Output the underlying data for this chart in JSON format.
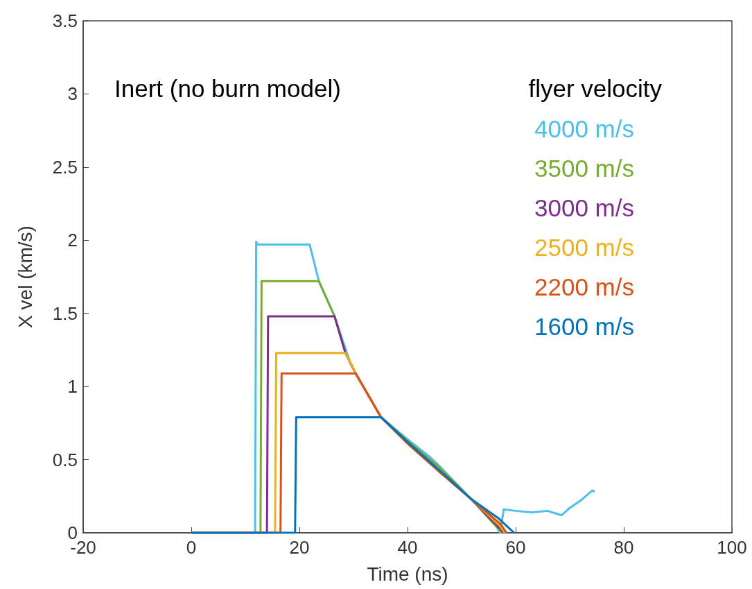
{
  "chart_data": {
    "type": "line",
    "xlabel": "Time (ns)",
    "ylabel": "X vel (km/s)",
    "legend_title": "flyer velocity",
    "annotations": [
      "Inert (no burn model)"
    ],
    "xlim": [
      -20,
      100
    ],
    "xticks": [
      -20,
      0,
      20,
      40,
      60,
      80,
      100
    ],
    "ylim": [
      0,
      3.5
    ],
    "yticks": [
      0,
      0.5,
      1,
      1.5,
      2,
      2.5,
      3,
      3.5
    ],
    "grid": false,
    "legend": "top right",
    "marker": "none",
    "line_style": "solid",
    "series": [
      {
        "name": "4000 m/s",
        "color": "#4dbeee",
        "x": [
          0,
          11.8,
          12.0,
          12.3,
          21.9,
          23.6,
          26.5,
          29.5,
          35.1,
          40.3,
          44.1,
          45.8,
          51.8,
          56.5,
          57.1,
          57.8,
          60,
          63,
          65.9,
          68.5,
          70,
          72,
          74.2,
          74.6
        ],
        "values": [
          0,
          0,
          1.99,
          1.97,
          1.97,
          1.72,
          1.48,
          1.15,
          0.79,
          0.63,
          0.52,
          0.46,
          0.23,
          0.04,
          0,
          0.16,
          0.15,
          0.14,
          0.15,
          0.12,
          0.17,
          0.22,
          0.29,
          0.28
        ]
      },
      {
        "name": "3500 m/s",
        "color": "#77ac30",
        "x": [
          0,
          12.8,
          13.0,
          23.6,
          26.5,
          28.5,
          30.4,
          35.1,
          40.3,
          45.8,
          51.8,
          56.5,
          57.5
        ],
        "values": [
          0,
          0,
          1.72,
          1.72,
          1.48,
          1.23,
          1.09,
          0.79,
          0.62,
          0.45,
          0.23,
          0.04,
          0
        ]
      },
      {
        "name": "3000 m/s",
        "color": "#7e2f8e",
        "x": [
          0,
          14.0,
          14.2,
          26.5,
          28.5,
          30.4,
          35.1,
          40.3,
          45.8,
          51.8,
          56.8,
          57.8
        ],
        "values": [
          0,
          0,
          1.48,
          1.48,
          1.23,
          1.09,
          0.79,
          0.61,
          0.43,
          0.23,
          0.04,
          0
        ]
      },
      {
        "name": "2500 m/s",
        "color": "#edb120",
        "x": [
          0,
          15.5,
          15.7,
          28.5,
          30.4,
          35.1,
          40.3,
          45.8,
          51.8,
          57.0,
          58.0
        ],
        "values": [
          0,
          0,
          1.23,
          1.23,
          1.09,
          0.79,
          0.6,
          0.42,
          0.23,
          0.05,
          0
        ]
      },
      {
        "name": "2200 m/s",
        "color": "#d95319",
        "x": [
          0,
          16.5,
          16.7,
          30.4,
          35.1,
          40.3,
          45.8,
          51.8,
          57.2,
          58.3
        ],
        "values": [
          0,
          0,
          1.09,
          1.09,
          0.79,
          0.6,
          0.42,
          0.23,
          0.06,
          0
        ]
      },
      {
        "name": "1600 m/s",
        "color": "#0072bd",
        "x": [
          0,
          19.2,
          19.4,
          35.1,
          40.3,
          45.8,
          51.8,
          56.8,
          59.7
        ],
        "values": [
          0,
          0,
          0.79,
          0.79,
          0.61,
          0.43,
          0.23,
          0.1,
          0
        ]
      }
    ]
  }
}
